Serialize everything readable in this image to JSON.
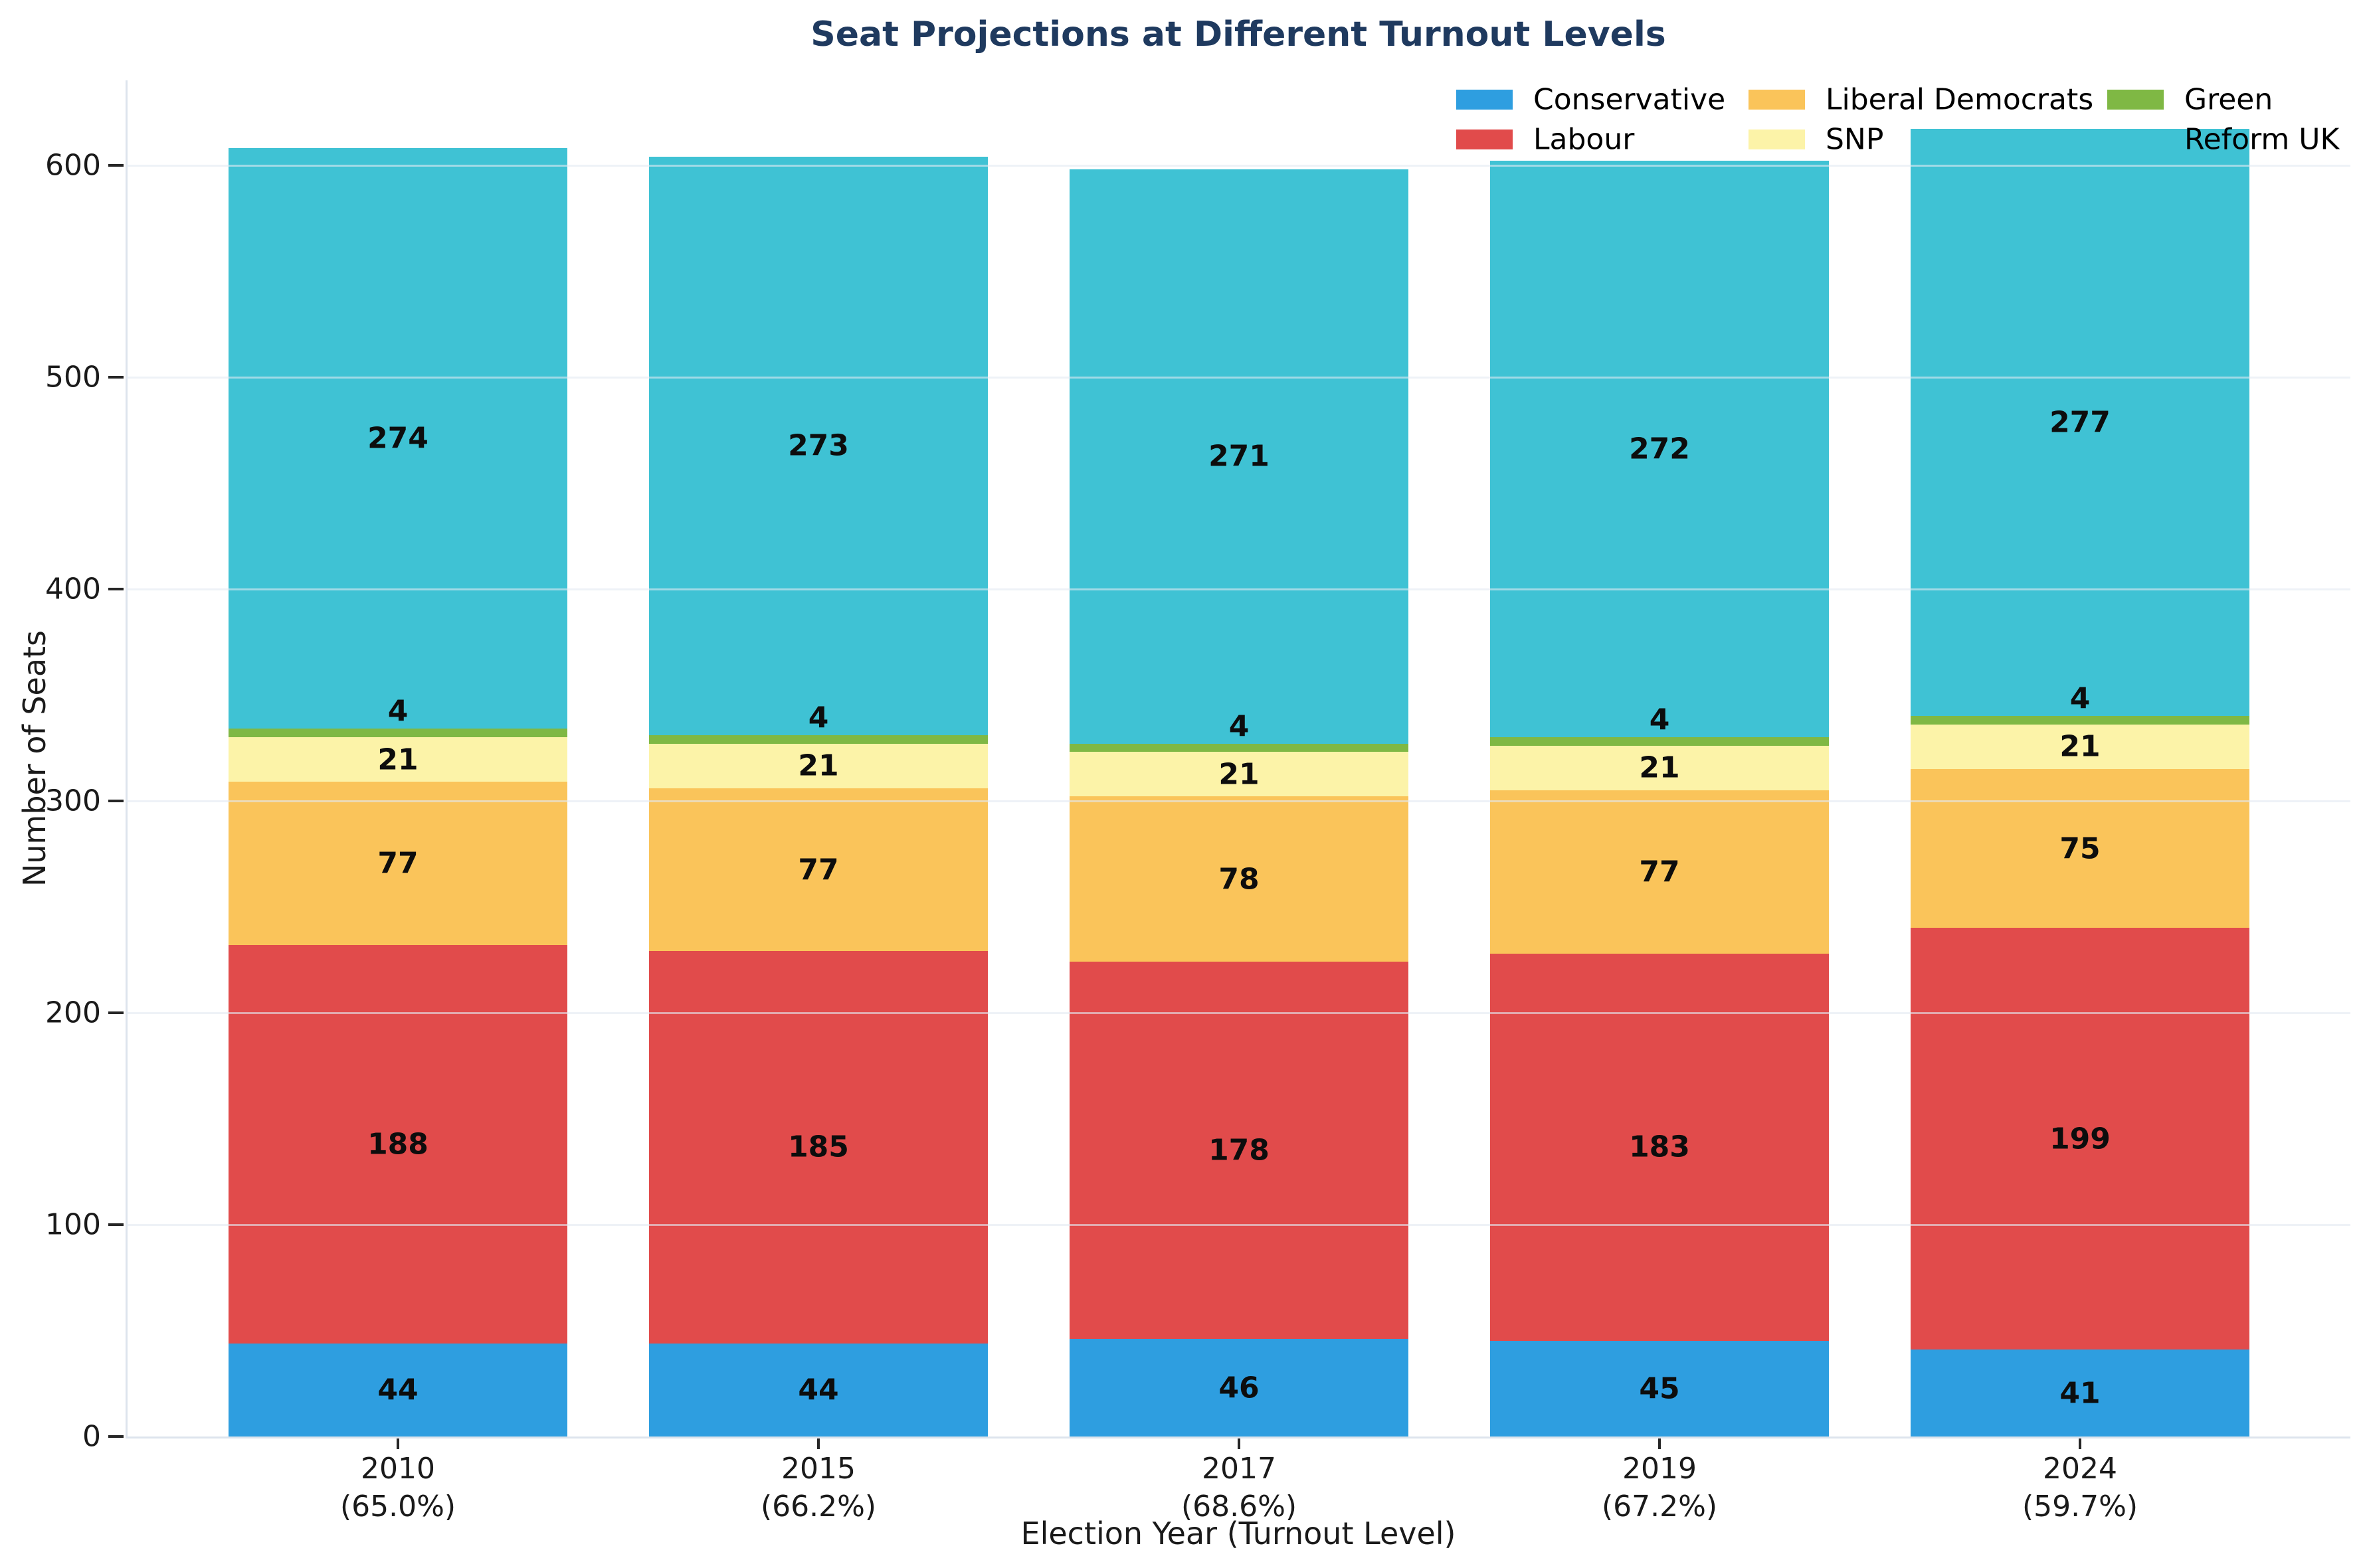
{
  "chart_data": {
    "type": "bar",
    "stacked": true,
    "title": "Seat Projections at Different Turnout Levels",
    "title_color": "#1f3a5f",
    "xlabel": "Election Year (Turnout Level)",
    "ylabel": "Number of Seats",
    "ylim": [
      0,
      640
    ],
    "yticks": [
      0,
      100,
      200,
      300,
      400,
      500,
      600
    ],
    "grid": true,
    "legend_position": "upper right",
    "categories": [
      {
        "year": "2010",
        "turnout": "(65.0%)"
      },
      {
        "year": "2015",
        "turnout": "(66.2%)"
      },
      {
        "year": "2017",
        "turnout": "(68.6%)"
      },
      {
        "year": "2019",
        "turnout": "(67.2%)"
      },
      {
        "year": "2024",
        "turnout": "(59.7%)"
      }
    ],
    "series": [
      {
        "name": "Conservative",
        "color": "#2E9EE0",
        "values": [
          44,
          44,
          46,
          45,
          41
        ]
      },
      {
        "name": "Labour",
        "color": "#E14B4B",
        "values": [
          188,
          185,
          178,
          183,
          199
        ]
      },
      {
        "name": "Liberal Democrats",
        "color": "#FAC45A",
        "values": [
          77,
          77,
          78,
          77,
          75
        ]
      },
      {
        "name": "SNP",
        "color": "#FCF3A8",
        "values": [
          21,
          21,
          21,
          21,
          21
        ]
      },
      {
        "name": "Green",
        "color": "#7FB844",
        "values": [
          4,
          4,
          4,
          4,
          4
        ]
      },
      {
        "name": "Reform UK",
        "color": "#3FC2D4",
        "values": [
          274,
          273,
          271,
          272,
          277
        ]
      }
    ]
  }
}
